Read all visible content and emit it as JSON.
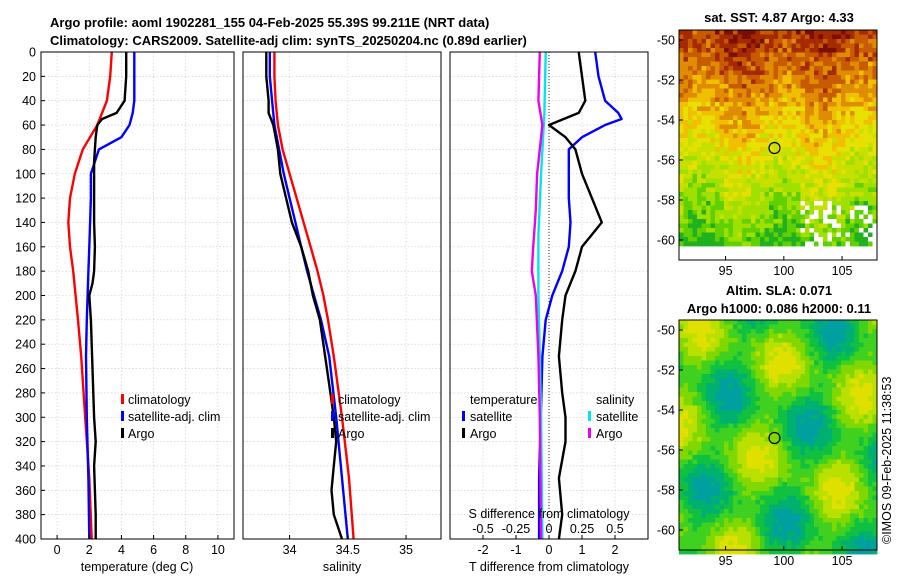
{
  "title": {
    "line1": "Argo profile: aoml 1902281_155 04-Feb-2025 55.39S 99.211E (NRT data)",
    "line2": "Climatology: CARS2009. Satellite-adj clim: synTS_20250204.nc (0.89d earlier)"
  },
  "footer": {
    "credit": "©IMOS 09-Feb-2025 11:38:53"
  },
  "colors": {
    "climatology": "#ff0000",
    "satellite": "#0000ff",
    "argo": "#000000",
    "s_satellite": "#00e5ee",
    "s_argo": "#ee00ee",
    "grid": "#c8c8c8"
  },
  "chart_data": [
    {
      "id": "temperature",
      "type": "line",
      "xlabel": "temperature (deg C)",
      "xlim": [
        -1,
        11
      ],
      "xticks": [
        0,
        2,
        4,
        6,
        8,
        10
      ],
      "ylim": [
        0,
        400
      ],
      "yticks": [
        0,
        20,
        40,
        60,
        80,
        100,
        120,
        140,
        160,
        180,
        200,
        220,
        240,
        260,
        280,
        300,
        320,
        340,
        360,
        380,
        400
      ],
      "y_reversed": true,
      "legend": {
        "position": "lower-right",
        "entries": [
          "climatology",
          "satellite-adj. clim",
          "Argo"
        ]
      },
      "series": [
        {
          "name": "climatology",
          "color": "#ff0000",
          "depth": [
            0,
            20,
            40,
            60,
            80,
            100,
            120,
            140,
            160,
            180,
            200,
            220,
            250,
            300,
            350,
            400
          ],
          "values": [
            3.4,
            3.3,
            3.1,
            2.5,
            1.6,
            1.1,
            0.8,
            0.7,
            0.8,
            1.0,
            1.15,
            1.3,
            1.5,
            1.75,
            2.0,
            2.15
          ]
        },
        {
          "name": "satellite-adj. clim",
          "color": "#0000ff",
          "depth": [
            0,
            20,
            40,
            50,
            60,
            70,
            80,
            100,
            120,
            140,
            160,
            180,
            200,
            220,
            250,
            300,
            350,
            400
          ],
          "values": [
            4.8,
            4.8,
            4.8,
            4.7,
            4.5,
            4.0,
            2.6,
            2.1,
            2.1,
            2.05,
            2.0,
            1.95,
            1.9,
            1.85,
            1.8,
            1.85,
            1.95,
            2.0
          ]
        },
        {
          "name": "Argo",
          "color": "#000000",
          "depth": [
            0,
            20,
            40,
            50,
            55,
            60,
            70,
            80,
            90,
            100,
            120,
            140,
            160,
            180,
            190,
            200,
            220,
            240,
            260,
            280,
            300,
            320,
            340,
            360,
            380,
            400
          ],
          "values": [
            4.3,
            4.3,
            4.2,
            3.7,
            2.8,
            2.5,
            2.4,
            2.35,
            2.3,
            2.3,
            2.3,
            2.3,
            2.35,
            2.3,
            2.2,
            2.0,
            2.1,
            2.15,
            2.2,
            2.25,
            2.3,
            2.4,
            2.3,
            2.35,
            2.4,
            2.4
          ]
        }
      ]
    },
    {
      "id": "salinity",
      "type": "line",
      "xlabel": "salinity",
      "xlim": [
        33.6,
        35.3
      ],
      "xticks": [
        34,
        34.5,
        35
      ],
      "ylim": [
        0,
        400
      ],
      "y_reversed": true,
      "legend": {
        "position": "lower-right",
        "entries": [
          "climatology",
          "satellite-adj. clim",
          "Argo"
        ]
      },
      "series": [
        {
          "name": "climatology",
          "color": "#ff0000",
          "depth": [
            0,
            20,
            40,
            60,
            80,
            100,
            120,
            140,
            160,
            180,
            200,
            220,
            250,
            300,
            350,
            400
          ],
          "values": [
            33.87,
            33.87,
            33.88,
            33.9,
            33.94,
            34.0,
            34.06,
            34.12,
            34.18,
            34.24,
            34.29,
            34.33,
            34.38,
            34.45,
            34.51,
            34.55
          ]
        },
        {
          "name": "satellite-adj. clim",
          "color": "#0000ff",
          "depth": [
            0,
            20,
            40,
            60,
            80,
            100,
            120,
            140,
            160,
            180,
            200,
            220,
            250,
            300,
            350,
            400
          ],
          "values": [
            33.83,
            33.83,
            33.85,
            33.87,
            33.91,
            33.95,
            34.0,
            34.05,
            34.1,
            34.15,
            34.21,
            34.27,
            34.34,
            34.4,
            34.45,
            34.5
          ]
        },
        {
          "name": "Argo",
          "color": "#000000",
          "depth": [
            0,
            20,
            40,
            50,
            60,
            70,
            80,
            100,
            120,
            140,
            160,
            180,
            200,
            220,
            240,
            260,
            280,
            300,
            320,
            340,
            360,
            380,
            400
          ],
          "values": [
            33.8,
            33.8,
            33.82,
            33.82,
            33.86,
            33.88,
            33.9,
            33.92,
            33.97,
            34.02,
            34.1,
            34.16,
            34.2,
            34.26,
            34.29,
            34.32,
            34.35,
            34.38,
            34.4,
            34.38,
            34.36,
            34.38,
            34.45
          ]
        }
      ]
    },
    {
      "id": "difference",
      "type": "line",
      "xlabel": "T difference from climatology",
      "x2label": "S difference from climatology",
      "xlim": [
        -3,
        3
      ],
      "xticks": [
        -2,
        -1,
        0,
        1,
        2
      ],
      "x2ticks": [
        -0.5,
        -0.25,
        0,
        0.25,
        0.5
      ],
      "x2tick_labels": [
        "-0.5",
        "-0.25",
        "0",
        "0.25",
        "0.5"
      ],
      "x2_scale": 0.25,
      "ylim": [
        0,
        400
      ],
      "y_reversed": true,
      "legend": {
        "position": "lower",
        "temperature_title": "temperature",
        "salinity_title": "salinity",
        "t_entries": [
          "satellite",
          "Argo"
        ],
        "s_entries": [
          "satellite",
          "Argo"
        ]
      },
      "series": [
        {
          "name": "T satellite",
          "color": "#0000ff",
          "depth": [
            0,
            20,
            40,
            50,
            55,
            60,
            70,
            80,
            100,
            120,
            140,
            160,
            180,
            200,
            220,
            250,
            300,
            350,
            400
          ],
          "values": [
            1.4,
            1.5,
            1.7,
            2.1,
            2.2,
            1.7,
            1.0,
            0.6,
            0.6,
            0.6,
            0.65,
            0.6,
            0.4,
            0.1,
            -0.1,
            -0.2,
            -0.25,
            -0.3,
            -0.3
          ]
        },
        {
          "name": "T Argo",
          "color": "#000000",
          "depth": [
            0,
            20,
            40,
            50,
            60,
            70,
            80,
            100,
            120,
            140,
            150,
            160,
            180,
            200,
            220,
            250,
            280,
            300,
            320,
            350,
            380,
            400
          ],
          "values": [
            0.9,
            1.0,
            1.1,
            0.9,
            0.0,
            0.5,
            0.8,
            1.0,
            1.3,
            1.6,
            1.3,
            1.0,
            0.8,
            0.5,
            0.4,
            0.3,
            0.4,
            0.5,
            0.5,
            0.3,
            0.4,
            0.3
          ]
        },
        {
          "name": "S satellite",
          "color": "#00e5ee",
          "depth": [
            0,
            50,
            100,
            150,
            200,
            250,
            300,
            350,
            400
          ],
          "values": [
            -0.025,
            -0.035,
            -0.06,
            -0.08,
            -0.08,
            -0.07,
            -0.06,
            -0.055,
            -0.05
          ]
        },
        {
          "name": "S Argo",
          "color": "#ee00ee",
          "depth": [
            0,
            40,
            60,
            80,
            100,
            130,
            160,
            180,
            200,
            250,
            300,
            350,
            400
          ],
          "values": [
            -0.07,
            -0.08,
            -0.05,
            -0.07,
            -0.09,
            -0.1,
            -0.12,
            -0.13,
            -0.1,
            -0.08,
            -0.07,
            -0.065,
            -0.06
          ]
        }
      ]
    },
    {
      "id": "sst-map",
      "type": "heatmap",
      "title": "sat. SST: 4.87 Argo: 4.33",
      "xlim": [
        91,
        108
      ],
      "ylim": [
        -61,
        -49.5
      ],
      "xticks": [
        95,
        100,
        105
      ],
      "yticks": [
        -50,
        -52,
        -54,
        -56,
        -58,
        -60
      ],
      "marker": {
        "lon": 99.2,
        "lat": -55.4
      },
      "colors": [
        "#7a0f00",
        "#a52a00",
        "#c85a00",
        "#e08c00",
        "#f0c000",
        "#e8e000",
        "#c8e000",
        "#a0e000",
        "#60d000",
        "#20b020"
      ]
    },
    {
      "id": "sla-map",
      "type": "heatmap",
      "title": "Altim. SLA: 0.071",
      "subtitle": "Argo h1000: 0.086 h2000: 0.11",
      "xlim": [
        91,
        108
      ],
      "ylim": [
        -61,
        -49.5
      ],
      "xticks": [
        95,
        100,
        105
      ],
      "yticks": [
        -50,
        -52,
        -54,
        -56,
        -58,
        -60
      ],
      "marker": {
        "lon": 99.2,
        "lat": -55.4
      },
      "colors": [
        "#00a0a0",
        "#00b070",
        "#10c040",
        "#40d020",
        "#80d800",
        "#b8e000",
        "#e0e000"
      ]
    }
  ]
}
